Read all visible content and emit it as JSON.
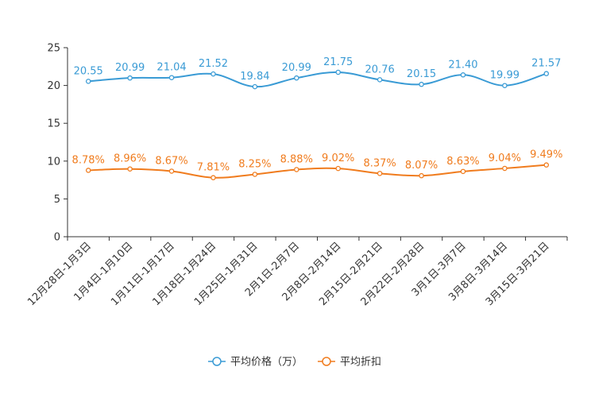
{
  "chart_data": {
    "type": "line",
    "title": "",
    "xlabel": "",
    "ylabel": "",
    "ylim": [
      0,
      25
    ],
    "yticks": [
      0,
      5,
      10,
      15,
      20,
      25
    ],
    "grid": false,
    "legend_position": "bottom-center",
    "categories": [
      "12月28日-1月3日",
      "1月4日-1月10日",
      "1月11日-1月17日",
      "1月18日-1月24日",
      "1月25日-1月31日",
      "2月1日-2月7日",
      "2月8日-2月14日",
      "2月15日-2月21日",
      "2月22日-2月28日",
      "3月1日-3月7日",
      "3月8日-3月14日",
      "3月15日-3月21日"
    ],
    "series": [
      {
        "name": "平均价格（万）",
        "color": "#3a9bd5",
        "values": [
          20.55,
          20.99,
          21.04,
          21.52,
          19.84,
          20.99,
          21.75,
          20.76,
          20.15,
          21.4,
          19.99,
          21.57
        ],
        "labels": [
          "20.55",
          "20.99",
          "21.04",
          "21.52",
          "19.84",
          "20.99",
          "21.75",
          "20.76",
          "20.15",
          "21.40",
          "19.99",
          "21.57"
        ]
      },
      {
        "name": "平均折扣",
        "color": "#f07c1e",
        "values": [
          8.78,
          8.96,
          8.67,
          7.81,
          8.25,
          8.88,
          9.02,
          8.37,
          8.07,
          8.63,
          9.04,
          9.49
        ],
        "labels": [
          "8.78%",
          "8.96%",
          "8.67%",
          "7.81%",
          "8.25%",
          "8.88%",
          "9.02%",
          "8.37%",
          "8.07%",
          "8.63%",
          "9.04%",
          "9.49%"
        ]
      }
    ]
  }
}
